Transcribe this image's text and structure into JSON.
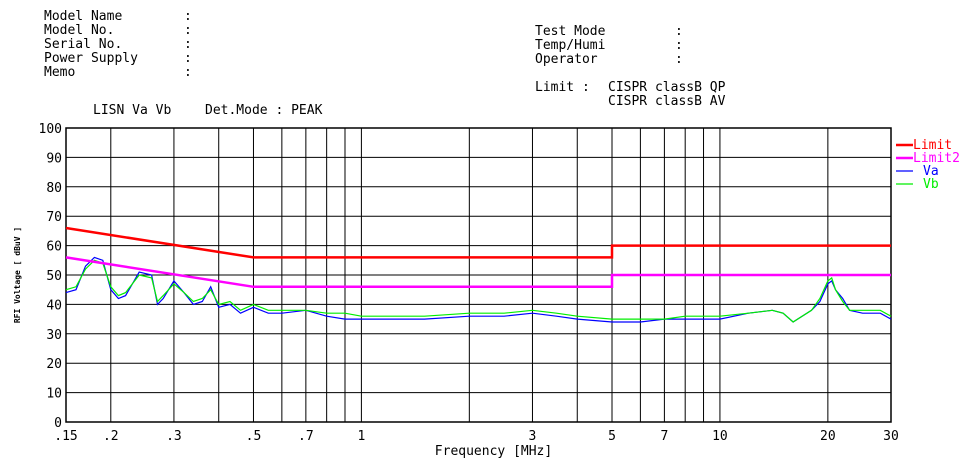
{
  "header": {
    "left_fields": [
      {
        "label": "Model Name",
        "value": ""
      },
      {
        "label": "Model No.",
        "value": ""
      },
      {
        "label": "Serial No.",
        "value": ""
      },
      {
        "label": "Power Supply",
        "value": ""
      },
      {
        "label": "Memo",
        "value": ""
      }
    ],
    "right_fields": [
      {
        "label": "Test Mode",
        "value": ""
      },
      {
        "label": "Temp/Humi",
        "value": ""
      },
      {
        "label": "Operator",
        "value": ""
      }
    ],
    "limit_label": "Limit : ",
    "limit_lines": [
      "CISPR classB QP",
      "CISPR classB AV"
    ],
    "lisn_text": "LISN Va Vb",
    "det_mode": "Det.Mode : PEAK"
  },
  "chart_data": {
    "type": "line",
    "xlabel": "Frequency [MHz]",
    "ylabel": "RFI Voltage [ dBuV ]",
    "x_scale": "log",
    "xlim": [
      0.15,
      30
    ],
    "ylim": [
      0,
      100
    ],
    "grid": true,
    "legend_position": "right",
    "x_ticks": [
      {
        "value": 0.15,
        "label": ".15"
      },
      {
        "value": 0.2,
        "label": ".2"
      },
      {
        "value": 0.3,
        "label": ".3"
      },
      {
        "value": 0.5,
        "label": ".5"
      },
      {
        "value": 0.7,
        "label": ".7"
      },
      {
        "value": 1,
        "label": "1"
      },
      {
        "value": 3,
        "label": "3"
      },
      {
        "value": 5,
        "label": "5"
      },
      {
        "value": 7,
        "label": "7"
      },
      {
        "value": 10,
        "label": "10"
      },
      {
        "value": 20,
        "label": "20"
      },
      {
        "value": 30,
        "label": "30"
      }
    ],
    "x_minor_gridlines": [
      0.4,
      0.6,
      0.8,
      0.9,
      2,
      4,
      6,
      8,
      9
    ],
    "y_ticks": [
      0,
      10,
      20,
      30,
      40,
      50,
      60,
      70,
      80,
      90,
      100
    ],
    "series": [
      {
        "name": "Limit",
        "color": "#ff0000",
        "x": [
          0.15,
          0.5,
          5,
          5,
          30
        ],
        "y": [
          66,
          56,
          56,
          60,
          60
        ]
      },
      {
        "name": "Limit2",
        "color": "#ff00ff",
        "x": [
          0.15,
          0.5,
          5,
          5,
          30
        ],
        "y": [
          56,
          46,
          46,
          50,
          50
        ]
      },
      {
        "name": "Va",
        "color": "#0000ff",
        "x": [
          0.15,
          0.16,
          0.17,
          0.18,
          0.19,
          0.2,
          0.21,
          0.22,
          0.24,
          0.26,
          0.27,
          0.28,
          0.3,
          0.32,
          0.34,
          0.36,
          0.38,
          0.4,
          0.43,
          0.46,
          0.5,
          0.55,
          0.6,
          0.7,
          0.8,
          0.9,
          1.0,
          1.2,
          1.5,
          2.0,
          2.5,
          3.0,
          3.5,
          4.0,
          5.0,
          6.0,
          7.0,
          8.0,
          10.0,
          12.0,
          14.0,
          15.0,
          16.0,
          18.0,
          19.0,
          20.0,
          20.5,
          21.0,
          22.0,
          23.0,
          25.0,
          28.0,
          30.0
        ],
        "y": [
          44,
          45,
          53,
          56,
          55,
          45,
          42,
          43,
          51,
          50,
          40,
          42,
          48,
          44,
          40,
          41,
          46,
          39,
          40,
          37,
          39,
          37,
          37,
          38,
          36,
          35,
          35,
          35,
          35,
          36,
          36,
          37,
          36,
          35,
          34,
          34,
          35,
          35,
          35,
          37,
          38,
          37,
          34,
          38,
          41,
          47,
          48,
          45,
          42,
          38,
          37,
          37,
          35
        ]
      },
      {
        "name": "Vb",
        "color": "#00ee00",
        "x": [
          0.15,
          0.16,
          0.17,
          0.18,
          0.19,
          0.2,
          0.21,
          0.22,
          0.24,
          0.26,
          0.27,
          0.28,
          0.3,
          0.32,
          0.34,
          0.36,
          0.38,
          0.4,
          0.43,
          0.46,
          0.5,
          0.55,
          0.6,
          0.7,
          0.8,
          0.9,
          1.0,
          1.2,
          1.5,
          2.0,
          2.5,
          3.0,
          3.5,
          4.0,
          5.0,
          6.0,
          7.0,
          8.0,
          10.0,
          12.0,
          14.0,
          15.0,
          16.0,
          18.0,
          19.0,
          20.0,
          20.5,
          21.0,
          22.0,
          23.0,
          25.0,
          28.0,
          30.0
        ],
        "y": [
          45,
          46,
          52,
          55,
          54,
          46,
          43,
          44,
          50,
          49,
          41,
          43,
          47,
          44,
          41,
          42,
          45,
          40,
          41,
          38,
          40,
          38,
          38,
          38,
          37,
          37,
          36,
          36,
          36,
          37,
          37,
          38,
          37,
          36,
          35,
          35,
          35,
          36,
          36,
          37,
          38,
          37,
          34,
          38,
          42,
          48,
          49,
          45,
          41,
          38,
          38,
          38,
          36
        ]
      }
    ]
  }
}
